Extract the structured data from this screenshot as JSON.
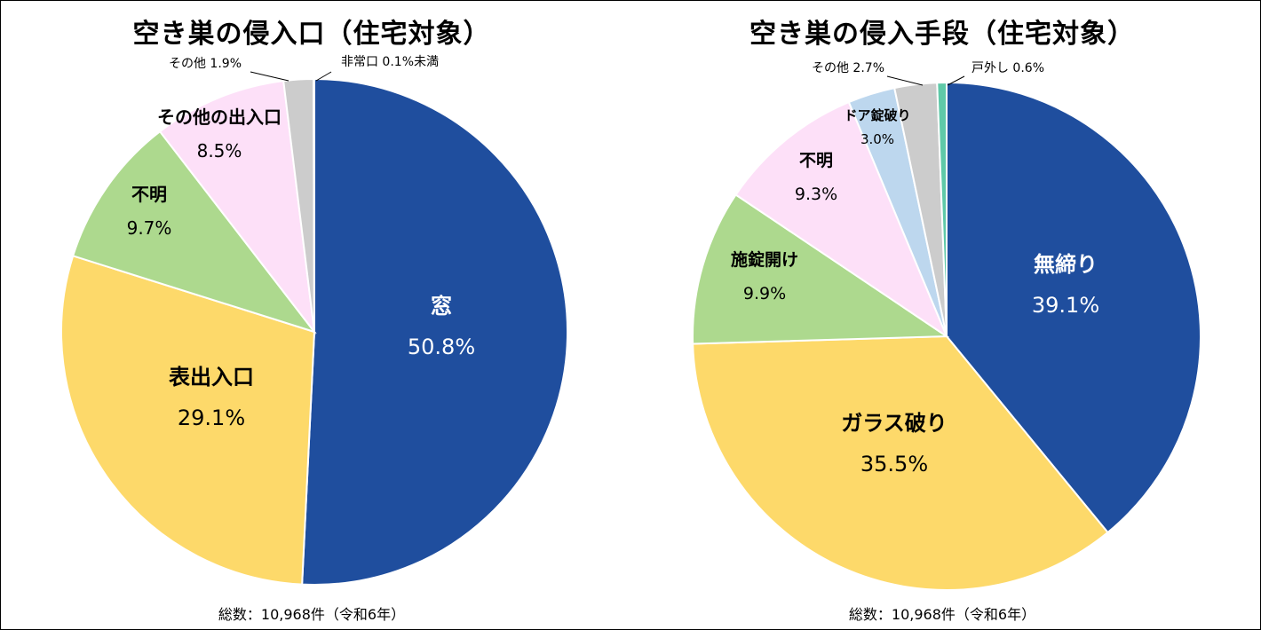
{
  "chart_data": [
    {
      "type": "pie",
      "title": "空き巣の侵入口（住宅対象）",
      "footnote": "総数：10,968件（令和6年）",
      "slices": [
        {
          "label": "窓",
          "value": 50.8,
          "value_text": "50.8%",
          "color": "#1f4e9e"
        },
        {
          "label": "表出入口",
          "value": 29.1,
          "value_text": "29.1%",
          "color": "#fdd96a"
        },
        {
          "label": "不明",
          "value": 9.7,
          "value_text": "9.7%",
          "color": "#add98e"
        },
        {
          "label": "その他の出入口",
          "value": 8.5,
          "value_text": "8.5%",
          "color": "#fde0f8"
        },
        {
          "label": "その他",
          "value": 1.9,
          "value_text": "1.9%",
          "color": "#cccccc"
        },
        {
          "label": "非常口",
          "value": 0.05,
          "value_text": "0.1%未満",
          "color": "#ffffff"
        }
      ]
    },
    {
      "type": "pie",
      "title": "空き巣の侵入手段（住宅対象）",
      "footnote": "総数：10,968件（令和6年）",
      "slices": [
        {
          "label": "無締り",
          "value": 39.1,
          "value_text": "39.1%",
          "color": "#1f4e9e"
        },
        {
          "label": "ガラス破り",
          "value": 35.5,
          "value_text": "35.5%",
          "color": "#fdd96a"
        },
        {
          "label": "施錠開け",
          "value": 9.9,
          "value_text": "9.9%",
          "color": "#add98e"
        },
        {
          "label": "不明",
          "value": 9.3,
          "value_text": "9.3%",
          "color": "#fde0f8"
        },
        {
          "label": "ドア錠破り",
          "value": 3.0,
          "value_text": "3.0%",
          "color": "#bdd7ee"
        },
        {
          "label": "その他",
          "value": 2.7,
          "value_text": "2.7%",
          "color": "#cccccc"
        },
        {
          "label": "戸外し",
          "value": 0.6,
          "value_text": "0.6%",
          "color": "#5fc9a8"
        }
      ]
    }
  ]
}
